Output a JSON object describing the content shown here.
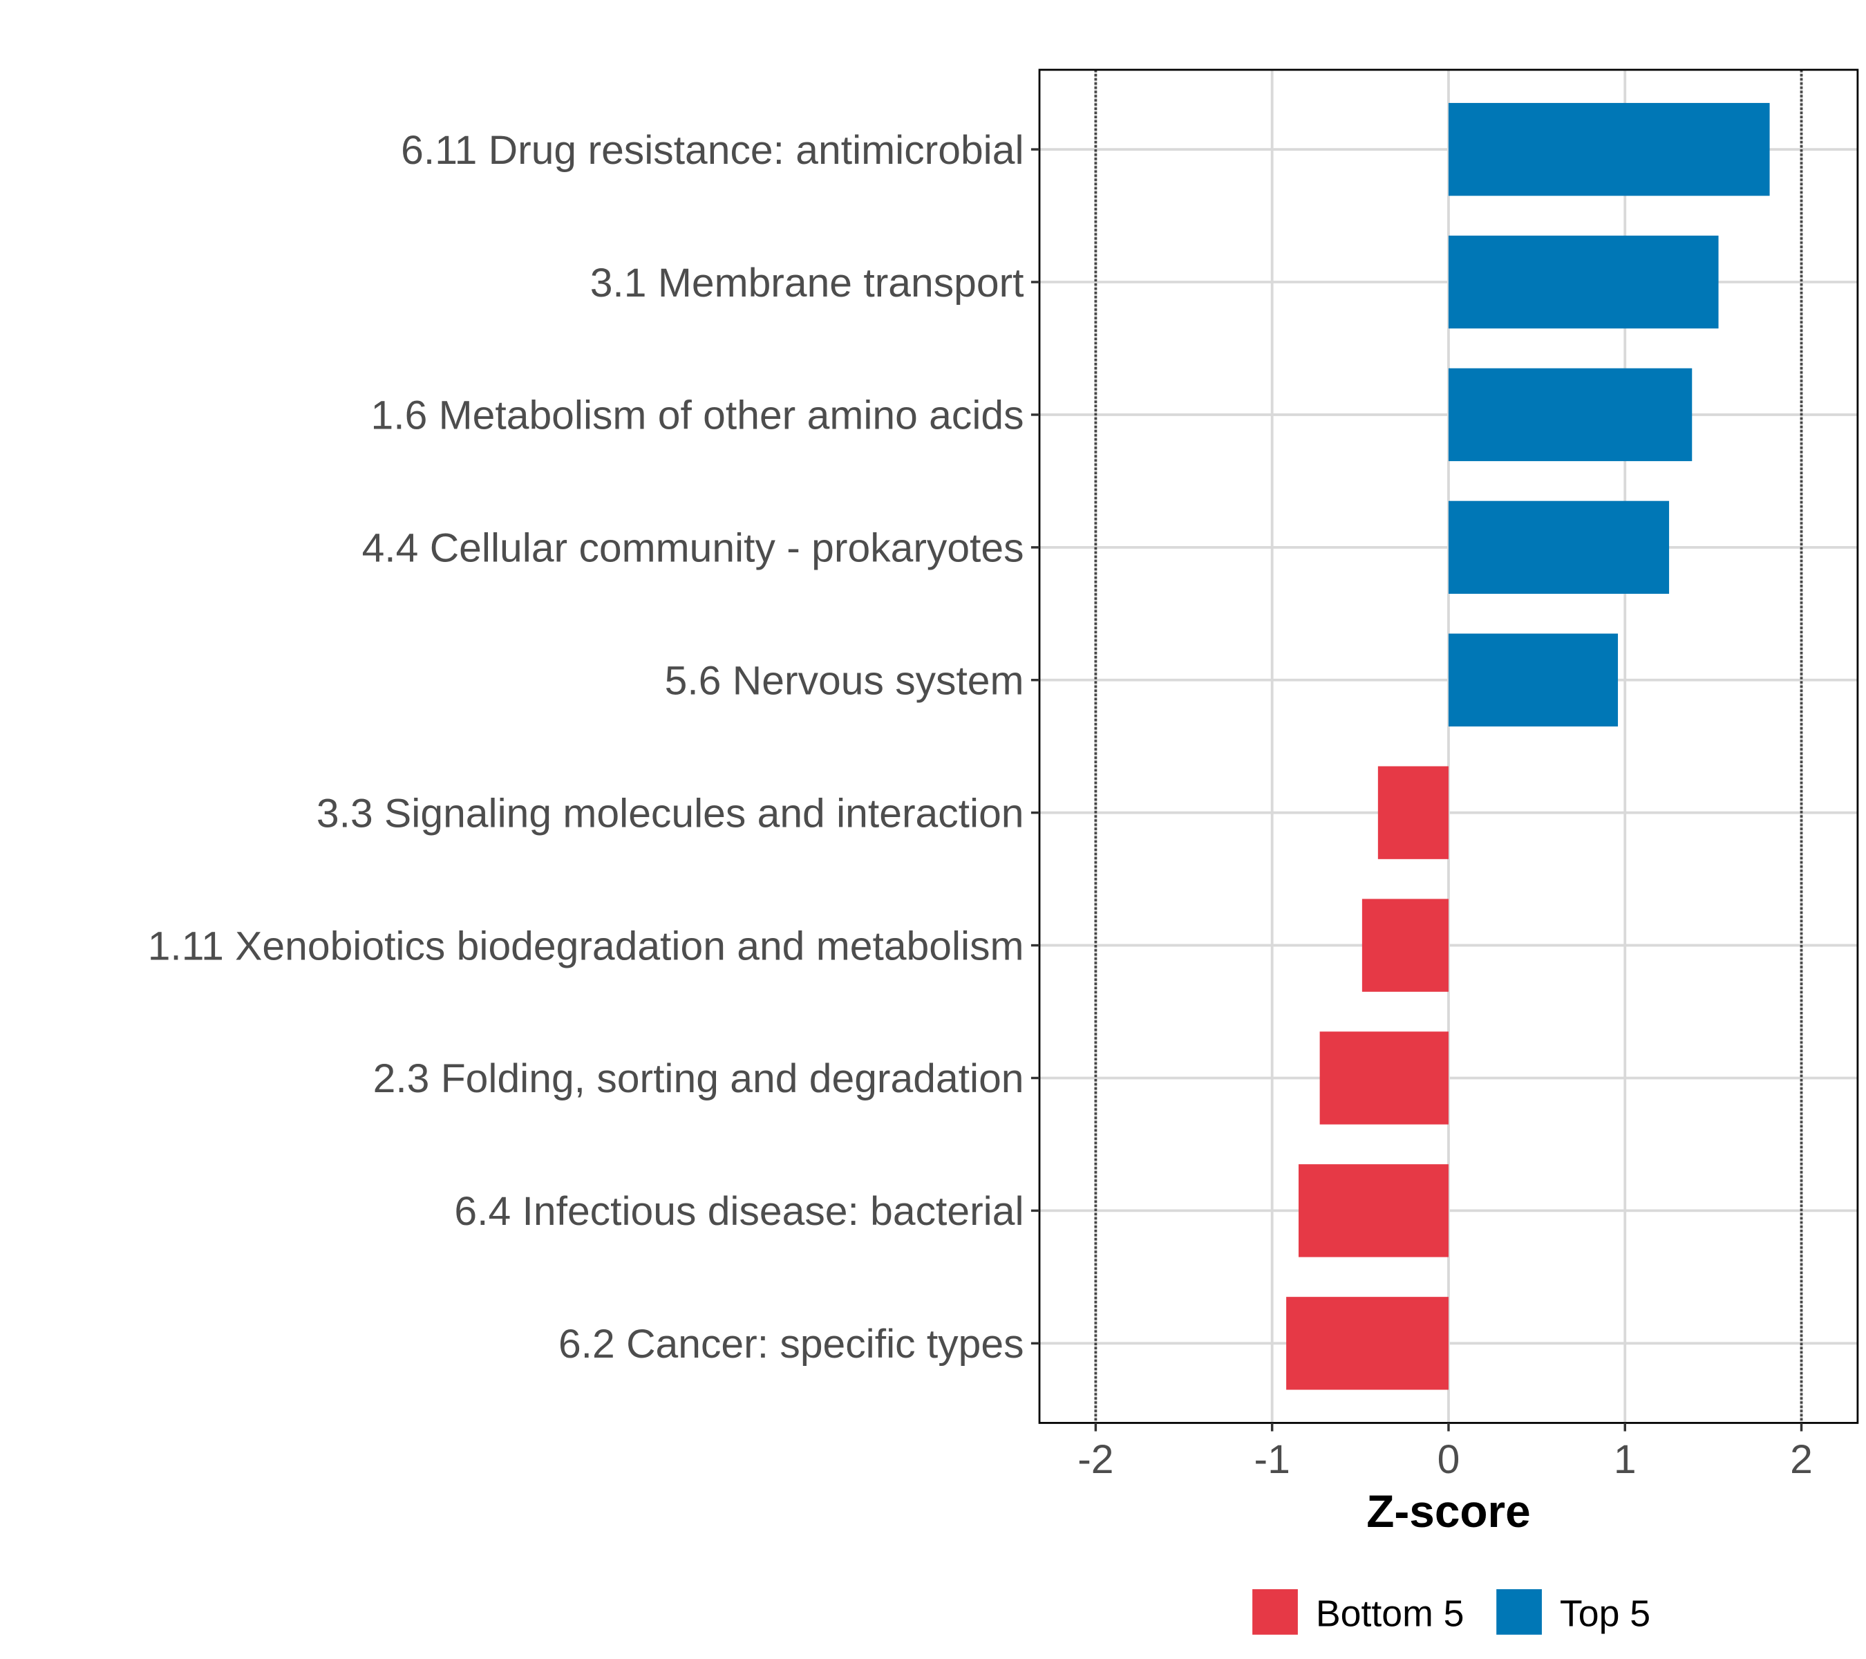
{
  "chart_data": {
    "type": "bar",
    "orientation": "horizontal",
    "title": "",
    "xlabel": "Z-score",
    "ylabel": "",
    "xlim": [
      -2.3,
      2.3
    ],
    "x_ticks": [
      "-2",
      "-1",
      "0",
      "1",
      "2"
    ],
    "x_tick_values": [
      -2,
      -1,
      0,
      1,
      2
    ],
    "reference_lines": [
      -2,
      2
    ],
    "grid": true,
    "legend_position": "bottom",
    "categories": [
      "6.11 Drug resistance: antimicrobial",
      "3.1 Membrane transport",
      "1.6 Metabolism of other amino acids",
      "4.4 Cellular community - prokaryotes",
      "5.6 Nervous system",
      "3.3 Signaling molecules and interaction",
      "1.11 Xenobiotics biodegradation and metabolism",
      "2.3 Folding, sorting and degradation",
      "6.4 Infectious disease: bacterial",
      "6.2 Cancer: specific types"
    ],
    "values": [
      1.82,
      1.53,
      1.38,
      1.25,
      0.96,
      -0.4,
      -0.49,
      -0.73,
      -0.85,
      -0.92
    ],
    "groups": [
      "Top 5",
      "Top 5",
      "Top 5",
      "Top 5",
      "Top 5",
      "Bottom 5",
      "Bottom 5",
      "Bottom 5",
      "Bottom 5",
      "Bottom 5"
    ],
    "legend": [
      {
        "label": "Bottom 5",
        "color": "#E63946"
      },
      {
        "label": "Top 5",
        "color": "#0077B6"
      }
    ]
  }
}
